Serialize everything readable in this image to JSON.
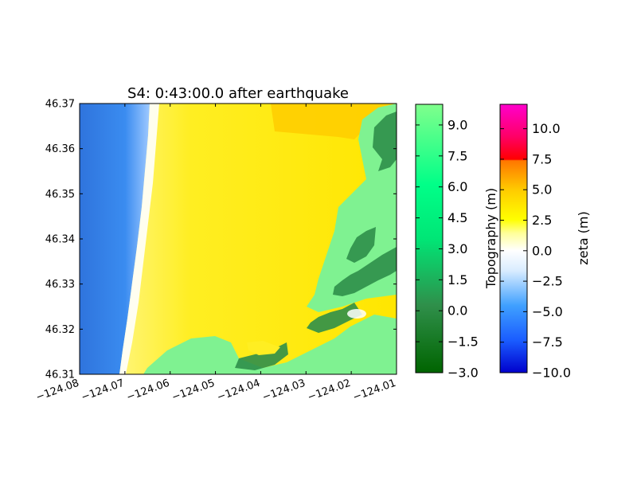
{
  "chart_data": {
    "type": "heatmap",
    "title": "S4: 0:43:00.0 after earthquake",
    "xlabel": "",
    "ylabel": "",
    "xlim": [
      -124.08,
      -124.01
    ],
    "ylim": [
      46.31,
      46.37
    ],
    "x_ticks": [
      "−124.08",
      "−124.07",
      "−124.06",
      "−124.05",
      "−124.04",
      "−124.03",
      "−124.02",
      "−124.01"
    ],
    "y_ticks": [
      "46.31",
      "46.32",
      "46.33",
      "46.34",
      "46.35",
      "46.36",
      "46.37"
    ],
    "colorbars": [
      {
        "label": "Topography (m)",
        "range": [
          -3.0,
          10.0
        ],
        "tick_values": [
          -3.0,
          -1.5,
          0.0,
          1.5,
          3.0,
          4.5,
          6.0,
          7.5,
          9.0
        ],
        "tick_labels": [
          "−3.0",
          "−1.5",
          "0.0",
          "1.5",
          "3.0",
          "4.5",
          "6.0",
          "7.5",
          "9.0"
        ],
        "colors": [
          "#006400",
          "#3cb371",
          "#00ff7f",
          "#7fff8c"
        ]
      },
      {
        "label": "zeta (m)",
        "range": [
          -10.0,
          12.0
        ],
        "tick_values": [
          -10.0,
          -7.5,
          -5.0,
          -2.5,
          0.0,
          2.5,
          5.0,
          7.5,
          10.0
        ],
        "tick_labels": [
          "−10.0",
          "−7.5",
          "−5.0",
          "−2.5",
          "0.0",
          "2.5",
          "5.0",
          "7.5",
          "10.0"
        ],
        "colors": [
          "#0000cc",
          "#3399ff",
          "#ffffff",
          "#ffff00",
          "#ff9900",
          "#ff0000",
          "#ff00ff"
        ]
      }
    ],
    "regions": [
      {
        "name": "ocean",
        "field": "zeta",
        "level": -6.0,
        "color": "#2f7fe6"
      },
      {
        "name": "surf-zone",
        "field": "zeta",
        "level": 0.0,
        "color": "#ffffff"
      },
      {
        "name": "inundation",
        "field": "zeta",
        "level": 2.5,
        "color": "#ffee00"
      },
      {
        "name": "inundation-deep",
        "field": "zeta",
        "level": 4.0,
        "color": "#ffcc00"
      },
      {
        "name": "land",
        "field": "topography",
        "level": 9.5,
        "color": "#7ff291"
      },
      {
        "name": "low-land",
        "field": "topography",
        "level": 0.0,
        "color": "#2e8b57"
      }
    ]
  }
}
